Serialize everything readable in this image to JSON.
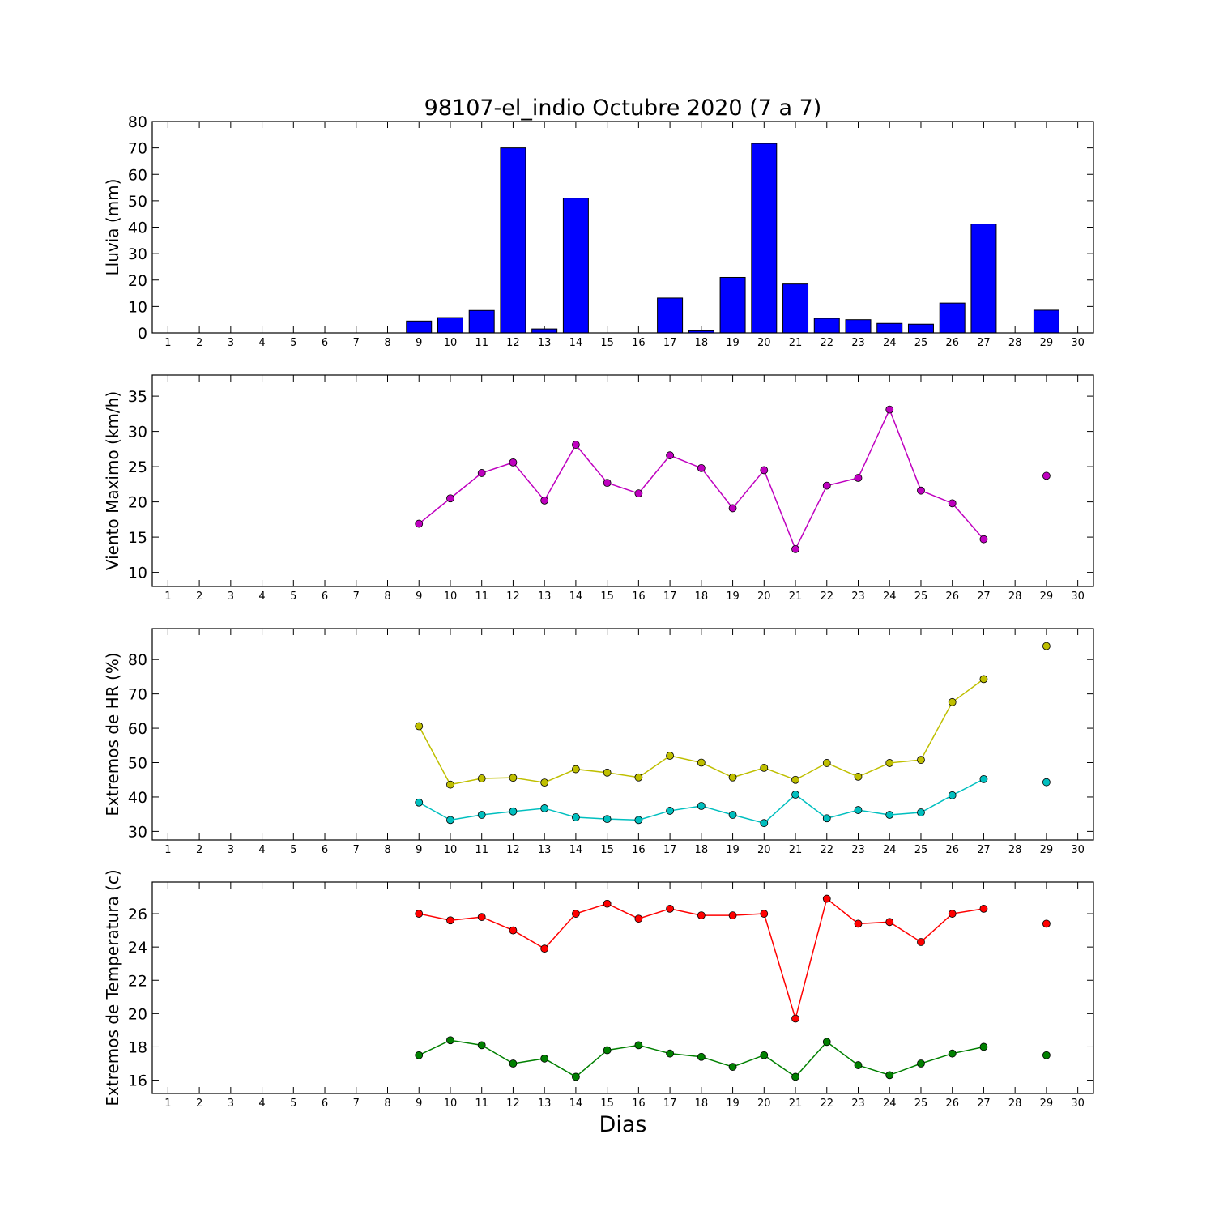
{
  "figure": {
    "title": "98107-el_indio Octubre 2020  (7 a 7)",
    "xlabel": "Dias"
  },
  "chart_data": [
    {
      "type": "bar",
      "ylabel": "Lluvia (mm)",
      "xlim": [
        0.5,
        30.5
      ],
      "ylim": [
        0,
        80
      ],
      "yticks": [
        0,
        10,
        20,
        30,
        40,
        50,
        60,
        70,
        80
      ],
      "xticks": [
        1,
        2,
        3,
        4,
        5,
        6,
        7,
        8,
        9,
        10,
        11,
        12,
        13,
        14,
        15,
        16,
        17,
        18,
        19,
        20,
        21,
        22,
        23,
        24,
        25,
        26,
        27,
        28,
        29,
        30
      ],
      "grid": false,
      "series": [
        {
          "color": "#0000ff",
          "x": [
            9,
            10,
            11,
            12,
            13,
            14,
            17,
            18,
            19,
            20,
            21,
            22,
            23,
            24,
            25,
            26,
            27,
            29
          ],
          "values": [
            4.5,
            5.8,
            8.5,
            70,
            1.5,
            51,
            13.2,
            0.8,
            21,
            71.7,
            18.5,
            5.5,
            5,
            3.6,
            3.3,
            11.3,
            41.2,
            8.6
          ]
        }
      ]
    },
    {
      "type": "line",
      "ylabel": "Viento Maximo (km/h)",
      "xlim": [
        0.5,
        30.5
      ],
      "ylim": [
        8,
        38
      ],
      "yticks": [
        10,
        15,
        20,
        25,
        30,
        35
      ],
      "xticks": [
        1,
        2,
        3,
        4,
        5,
        6,
        7,
        8,
        9,
        10,
        11,
        12,
        13,
        14,
        15,
        16,
        17,
        18,
        19,
        20,
        21,
        22,
        23,
        24,
        25,
        26,
        27,
        28,
        29,
        30
      ],
      "grid": false,
      "series": [
        {
          "color": "#bf00bf",
          "x": [
            9,
            10,
            11,
            12,
            13,
            14,
            15,
            16,
            17,
            18,
            19,
            20,
            21,
            22,
            23,
            24,
            25,
            26,
            27,
            29
          ],
          "values": [
            16.9,
            20.5,
            24.1,
            25.6,
            20.2,
            28.1,
            22.7,
            21.2,
            26.6,
            24.8,
            19.1,
            24.5,
            13.3,
            22.3,
            23.4,
            33.1,
            21.6,
            19.8,
            14.7,
            23.7
          ]
        }
      ]
    },
    {
      "type": "line",
      "ylabel": "Extremos de HR (%)",
      "xlim": [
        0.5,
        30.5
      ],
      "ylim": [
        27.5,
        89
      ],
      "yticks": [
        30,
        40,
        50,
        60,
        70,
        80
      ],
      "xticks": [
        1,
        2,
        3,
        4,
        5,
        6,
        7,
        8,
        9,
        10,
        11,
        12,
        13,
        14,
        15,
        16,
        17,
        18,
        19,
        20,
        21,
        22,
        23,
        24,
        25,
        26,
        27,
        28,
        29,
        30
      ],
      "grid": false,
      "series": [
        {
          "color": "#bfbf00",
          "x": [
            9,
            10,
            11,
            12,
            13,
            14,
            15,
            16,
            17,
            18,
            19,
            20,
            21,
            22,
            23,
            24,
            25,
            26,
            27,
            29
          ],
          "values": [
            60.6,
            43.6,
            45.4,
            45.6,
            44.2,
            48.1,
            47.1,
            45.7,
            52,
            50,
            45.7,
            48.5,
            45,
            49.9,
            45.9,
            49.9,
            50.8,
            67.6,
            74.3,
            83.9
          ]
        },
        {
          "color": "#00bfbf",
          "x": [
            9,
            10,
            11,
            12,
            13,
            14,
            15,
            16,
            17,
            18,
            19,
            20,
            21,
            22,
            23,
            24,
            25,
            26,
            27,
            29
          ],
          "values": [
            38.4,
            33.3,
            34.8,
            35.8,
            36.7,
            34.1,
            33.6,
            33.3,
            36,
            37.4,
            34.8,
            32.4,
            40.7,
            33.8,
            36.2,
            34.8,
            35.5,
            40.5,
            45.2,
            44.3
          ]
        }
      ]
    },
    {
      "type": "line",
      "ylabel": "Extremos de Temperatura (c)",
      "xlim": [
        0.5,
        30.5
      ],
      "ylim": [
        15.2,
        27.9
      ],
      "yticks": [
        16,
        18,
        20,
        22,
        24,
        26
      ],
      "xticks": [
        1,
        2,
        3,
        4,
        5,
        6,
        7,
        8,
        9,
        10,
        11,
        12,
        13,
        14,
        15,
        16,
        17,
        18,
        19,
        20,
        21,
        22,
        23,
        24,
        25,
        26,
        27,
        28,
        29,
        30
      ],
      "grid": false,
      "series": [
        {
          "color": "#ff0000",
          "x": [
            9,
            10,
            11,
            12,
            13,
            14,
            15,
            16,
            17,
            18,
            19,
            20,
            21,
            22,
            23,
            24,
            25,
            26,
            27,
            29
          ],
          "values": [
            26,
            25.6,
            25.8,
            25,
            23.9,
            26,
            26.6,
            25.7,
            26.3,
            25.9,
            25.9,
            26,
            19.7,
            26.9,
            25.4,
            25.5,
            24.3,
            26,
            26.3,
            25.4
          ]
        },
        {
          "color": "#008000",
          "x": [
            9,
            10,
            11,
            12,
            13,
            14,
            15,
            16,
            17,
            18,
            19,
            20,
            21,
            22,
            23,
            24,
            25,
            26,
            27,
            29
          ],
          "values": [
            17.5,
            18.4,
            18.1,
            17,
            17.3,
            16.2,
            17.8,
            18.1,
            17.6,
            17.4,
            16.8,
            17.5,
            16.2,
            18.3,
            16.9,
            16.3,
            17,
            17.6,
            18,
            17.5
          ]
        }
      ]
    }
  ]
}
